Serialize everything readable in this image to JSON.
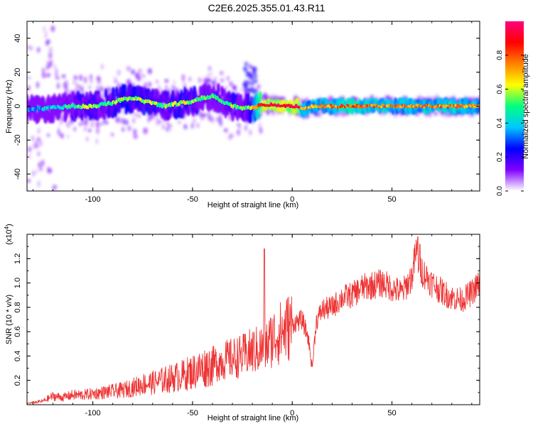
{
  "title": "C2E6.2025.355.01.43.R11",
  "chart_data": [
    {
      "type": "heatmap",
      "xlabel": "Height of straight line (km)",
      "ylabel": "Frequency (Hz)",
      "xlim": [
        -133,
        94
      ],
      "ylim": [
        -50,
        50
      ],
      "xticks": [
        -100,
        -50,
        0,
        50
      ],
      "xtick_labels": [
        "-100",
        "-50",
        "0",
        "50"
      ],
      "yticks": [
        -40,
        -20,
        0,
        20,
        40
      ],
      "ytick_labels": [
        "-40",
        "-20",
        "0",
        "20",
        "40"
      ],
      "grid": false,
      "colorbar": {
        "label": "Normalized spectral amplitude",
        "range": [
          0,
          1
        ],
        "ticks": [
          0.0,
          0.2,
          0.4,
          0.6,
          0.8
        ],
        "tick_labels": [
          "0.0",
          "0.2",
          "0.4",
          "0.6",
          "0.8"
        ],
        "colors": [
          "#ffffff",
          "#8000ff",
          "#0000ff",
          "#00c8ff",
          "#00ff80",
          "#ffff00",
          "#ff8000",
          "#ff0000",
          "#ff0080"
        ]
      },
      "ridge": {
        "x": [
          -133,
          -120,
          -110,
          -100,
          -95,
          -90,
          -85,
          -80,
          -75,
          -70,
          -65,
          -60,
          -55,
          -50,
          -45,
          -40,
          -35,
          -30,
          -25,
          -20,
          -15,
          -10,
          -5,
          0,
          3,
          5,
          10,
          20,
          30,
          40,
          50,
          60,
          70,
          80,
          94
        ],
        "freq": [
          -2,
          -1,
          0,
          0,
          1,
          2,
          4,
          5,
          3,
          2,
          0,
          1,
          2,
          3,
          5,
          6,
          3,
          0,
          -1,
          -1,
          1,
          1,
          0,
          0,
          0,
          -2,
          0,
          0,
          0,
          0,
          0,
          0,
          0,
          0,
          0
        ],
        "amplitude": [
          0.35,
          0.4,
          0.5,
          0.55,
          0.5,
          0.55,
          0.6,
          0.55,
          0.6,
          0.55,
          0.5,
          0.55,
          0.6,
          0.55,
          0.5,
          0.5,
          0.45,
          0.55,
          0.5,
          0.6,
          0.95,
          0.95,
          0.95,
          0.95,
          0.95,
          0.7,
          0.7,
          0.75,
          0.8,
          0.75,
          0.75,
          0.75,
          0.75,
          0.75,
          0.75
        ]
      }
    },
    {
      "type": "line",
      "xlabel": "Height of straight line (km)",
      "ylabel": "SNR (10 * v/v)",
      "y_multiplier": "(x10",
      "y_multiplier_exp": "4",
      "y_multiplier_close": ")",
      "xlim": [
        -133,
        94
      ],
      "ylim": [
        0,
        1.4
      ],
      "xticks": [
        -100,
        -50,
        0,
        50
      ],
      "xtick_labels": [
        "-100",
        "-50",
        "0",
        "50"
      ],
      "yticks": [
        0.2,
        0.4,
        0.6,
        0.8,
        1.0,
        1.2
      ],
      "ytick_labels": [
        "0.2",
        "0.4",
        "0.6",
        "0.8",
        "1.0",
        "1.2"
      ],
      "grid": false,
      "color": "#ee3333",
      "x": [
        -133,
        -125,
        -120,
        -115,
        -110,
        -105,
        -100,
        -95,
        -90,
        -85,
        -80,
        -75,
        -70,
        -65,
        -60,
        -55,
        -50,
        -45,
        -40,
        -35,
        -30,
        -25,
        -20,
        -17,
        -15,
        -12,
        -10,
        -5,
        0,
        5,
        8,
        10,
        12,
        15,
        20,
        25,
        30,
        35,
        40,
        45,
        50,
        55,
        60,
        62,
        65,
        70,
        75,
        80,
        85,
        90,
        94
      ],
      "y": [
        0.01,
        0.03,
        0.07,
        0.06,
        0.08,
        0.08,
        0.09,
        0.1,
        0.11,
        0.12,
        0.14,
        0.17,
        0.18,
        0.2,
        0.22,
        0.24,
        0.27,
        0.3,
        0.33,
        0.36,
        0.38,
        0.4,
        0.44,
        0.45,
        0.46,
        0.5,
        0.55,
        0.6,
        0.66,
        0.7,
        0.55,
        0.3,
        0.68,
        0.78,
        0.8,
        0.88,
        0.9,
        0.96,
        0.98,
        1.0,
        0.96,
        0.92,
        1.05,
        1.25,
        1.1,
        1.0,
        0.93,
        0.88,
        0.86,
        0.92,
        1.0
      ],
      "peaks": [
        {
          "x": -14,
          "y": 1.28
        },
        {
          "x": 63,
          "y": 1.38
        },
        {
          "x": 64,
          "y": 1.32
        }
      ]
    }
  ]
}
